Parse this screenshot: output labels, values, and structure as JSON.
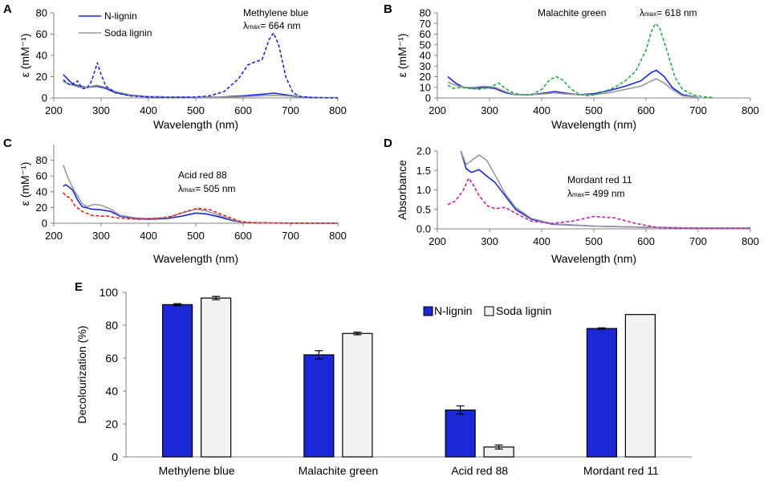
{
  "chart_data": [
    {
      "panel": "A",
      "type": "line",
      "xlabel": "Wavelength (nm)",
      "ylabel": "ε (mM⁻¹)",
      "xlim": [
        200,
        800
      ],
      "ylim": [
        0,
        80
      ],
      "xticks": [
        200,
        300,
        400,
        500,
        600,
        700,
        800
      ],
      "yticks": [
        0,
        20,
        40,
        60,
        80
      ],
      "annotation": "Methylene blue",
      "lambda_symbol": "λ",
      "lambda_sub": "max",
      "lambda_value": "= 664 nm",
      "legend": [
        "N-lignin",
        "Soda lignin"
      ],
      "series": [
        {
          "name": "N-lignin",
          "style": "solid",
          "color": "#1a28d6",
          "x": [
            220,
            240,
            255,
            270,
            290,
            310,
            330,
            360,
            400,
            450,
            500,
            550,
            600,
            640,
            665,
            690,
            720,
            760,
            800
          ],
          "y": [
            22,
            13,
            11,
            10,
            11,
            9,
            5,
            2.5,
            1.3,
            0.8,
            0.6,
            0.8,
            2,
            3.5,
            4.5,
            3,
            1,
            0.3,
            0.2
          ]
        },
        {
          "name": "Soda lignin",
          "style": "solid",
          "color": "#999999",
          "x": [
            220,
            240,
            255,
            270,
            290,
            310,
            330,
            360,
            400,
            450,
            500,
            550,
            600,
            640,
            665,
            690,
            720,
            760,
            800
          ],
          "y": [
            15,
            12,
            10,
            10,
            12,
            10,
            6,
            3,
            1.5,
            0.8,
            0.6,
            0.6,
            1.2,
            2,
            2.5,
            2,
            0.8,
            0.3,
            0.2
          ]
        },
        {
          "name": "Methylene blue",
          "style": "dashed",
          "color": "#1a28d6",
          "x": [
            220,
            235,
            250,
            260,
            270,
            280,
            292,
            300,
            310,
            330,
            360,
            400,
            450,
            500,
            530,
            560,
            590,
            610,
            625,
            640,
            655,
            664,
            675,
            690,
            705,
            720,
            740,
            770,
            800
          ],
          "y": [
            17,
            12,
            16,
            9,
            9,
            16,
            33,
            22,
            11,
            5,
            2,
            0.8,
            0.5,
            0.8,
            2,
            6,
            18,
            31,
            34,
            36,
            55,
            61,
            50,
            20,
            5,
            1.5,
            0.5,
            0.2,
            0.1
          ]
        }
      ]
    },
    {
      "panel": "B",
      "type": "line",
      "xlabel": "Wavelength (nm)",
      "ylabel": "ε (mM⁻¹)",
      "xlim": [
        200,
        800
      ],
      "ylim": [
        0,
        80
      ],
      "xticks": [
        200,
        300,
        400,
        500,
        600,
        700,
        800
      ],
      "yticks": [
        0,
        10,
        20,
        30,
        40,
        50,
        60,
        70,
        80
      ],
      "annotation": "Malachite green",
      "lambda_symbol": "λ",
      "lambda_sub": "max",
      "lambda_value": "= 618 nm",
      "series": [
        {
          "name": "N-lignin",
          "style": "solid",
          "color": "#1a28d6",
          "x": [
            220,
            235,
            250,
            270,
            290,
            310,
            330,
            350,
            380,
            410,
            425,
            440,
            470,
            500,
            530,
            560,
            590,
            610,
            620,
            635,
            650,
            670,
            700
          ],
          "y": [
            20,
            14,
            10,
            9,
            10,
            9,
            5,
            3,
            3,
            5,
            6,
            5,
            3,
            4,
            7,
            11,
            16,
            24,
            26,
            20,
            10,
            3,
            0.5
          ]
        },
        {
          "name": "Soda lignin",
          "style": "solid",
          "color": "#999999",
          "x": [
            220,
            235,
            250,
            270,
            290,
            310,
            330,
            350,
            380,
            410,
            425,
            440,
            470,
            500,
            530,
            560,
            590,
            610,
            620,
            635,
            650,
            670,
            700
          ],
          "y": [
            15,
            12,
            10,
            10,
            11,
            10,
            6,
            3,
            3,
            4,
            5,
            4,
            3,
            3,
            5,
            8,
            11,
            16,
            18,
            14,
            8,
            2,
            0.5
          ]
        },
        {
          "name": "Malachite green",
          "style": "dashed",
          "color": "#1fae4a",
          "x": [
            220,
            230,
            245,
            260,
            280,
            300,
            318,
            330,
            345,
            360,
            380,
            400,
            415,
            428,
            440,
            455,
            470,
            485,
            500,
            520,
            540,
            560,
            580,
            600,
            610,
            618,
            625,
            640,
            655,
            670,
            690,
            710,
            730
          ],
          "y": [
            12,
            9,
            10,
            9,
            8,
            10,
            14,
            9,
            5,
            3,
            3,
            8,
            17,
            20,
            17,
            9,
            4,
            2,
            3,
            6,
            10,
            16,
            25,
            45,
            62,
            70,
            67,
            45,
            20,
            8,
            3,
            1,
            0.5
          ]
        }
      ]
    },
    {
      "panel": "C",
      "type": "line",
      "xlabel": "Wavelength (nm)",
      "ylabel": "ε (mM⁻¹)",
      "xlim": [
        200,
        800
      ],
      "ylim": [
        0,
        100
      ],
      "xticks": [
        200,
        300,
        400,
        500,
        600,
        700,
        800
      ],
      "yticks": [
        0,
        20,
        40,
        60,
        80
      ],
      "annotation": "Acid red 88",
      "lambda_symbol": "λ",
      "lambda_sub": "max",
      "lambda_value": "= 505 nm",
      "series": [
        {
          "name": "N-lignin",
          "style": "solid",
          "color": "#1a28d6",
          "x": [
            220,
            225,
            230,
            240,
            250,
            260,
            280,
            300,
            320,
            340,
            370,
            400,
            440,
            470,
            500,
            520,
            550,
            580,
            600,
            640,
            700,
            800
          ],
          "y": [
            47,
            49,
            47,
            42,
            30,
            21,
            18,
            17,
            15,
            9,
            6,
            5,
            6,
            9,
            13,
            12,
            8,
            3,
            1,
            0.4,
            0.2,
            0.1
          ]
        },
        {
          "name": "Soda lignin",
          "style": "solid",
          "color": "#999999",
          "x": [
            220,
            230,
            240,
            250,
            260,
            270,
            285,
            300,
            320,
            340,
            370,
            400,
            440,
            470,
            500,
            520,
            550,
            580,
            600,
            640,
            700,
            800
          ],
          "y": [
            74,
            58,
            45,
            35,
            25,
            21,
            24,
            23,
            18,
            10,
            7,
            6,
            7,
            13,
            18,
            16,
            10,
            4,
            1,
            0.4,
            0.2,
            0.1
          ]
        },
        {
          "name": "Acid red 88",
          "style": "dashed",
          "color": "#e02020",
          "x": [
            220,
            225,
            235,
            245,
            260,
            280,
            300,
            315,
            330,
            350,
            380,
            420,
            450,
            480,
            505,
            530,
            560,
            590,
            610,
            650,
            700,
            800
          ],
          "y": [
            39,
            35,
            32,
            22,
            15,
            10,
            9,
            9,
            7,
            6,
            5,
            6,
            9,
            15,
            19,
            17,
            10,
            3,
            1,
            0.3,
            0.1,
            0.1
          ]
        }
      ]
    },
    {
      "panel": "D",
      "type": "line",
      "xlabel": "Wavelength (nm)",
      "ylabel": "Absorbance",
      "xlim": [
        200,
        800
      ],
      "ylim": [
        0,
        2.0
      ],
      "xticks": [
        200,
        300,
        400,
        500,
        600,
        700,
        800
      ],
      "yticks": [
        0.0,
        0.5,
        1.0,
        1.5,
        2.0
      ],
      "ytick_labels": [
        "0.0",
        "0.5",
        "1.0",
        "1.5",
        "2.0"
      ],
      "annotation": "Mordant red 11",
      "lambda_symbol": "λ",
      "lambda_sub": "max",
      "lambda_value": "= 499 nm",
      "series": [
        {
          "name": "N-lignin",
          "style": "solid",
          "color": "#1a28d6",
          "x": [
            245,
            255,
            265,
            280,
            295,
            310,
            330,
            350,
            380,
            420,
            500,
            600,
            700,
            800
          ],
          "y": [
            2.0,
            1.55,
            1.45,
            1.52,
            1.35,
            1.2,
            0.85,
            0.5,
            0.25,
            0.12,
            0.07,
            0.04,
            0.02,
            0.02
          ]
        },
        {
          "name": "Soda lignin",
          "style": "solid",
          "color": "#999999",
          "x": [
            245,
            255,
            265,
            280,
            295,
            310,
            330,
            350,
            380,
            420,
            500,
            600,
            700,
            800
          ],
          "y": [
            2.0,
            1.65,
            1.75,
            1.9,
            1.75,
            1.4,
            0.9,
            0.55,
            0.27,
            0.13,
            0.07,
            0.04,
            0.02,
            0.02
          ]
        },
        {
          "name": "Mordant red 11",
          "style": "dashed",
          "color": "#c020b0",
          "x": [
            220,
            235,
            250,
            260,
            268,
            280,
            295,
            310,
            330,
            350,
            380,
            420,
            460,
            500,
            540,
            580,
            620,
            660,
            700,
            760,
            800
          ],
          "y": [
            0.62,
            0.72,
            1.0,
            1.3,
            1.15,
            0.85,
            0.6,
            0.52,
            0.55,
            0.4,
            0.2,
            0.14,
            0.2,
            0.32,
            0.28,
            0.14,
            0.04,
            0.02,
            0.01,
            0.01,
            0.01
          ]
        }
      ]
    },
    {
      "panel": "E",
      "type": "bar",
      "ylabel": "Decolourization (%)",
      "ylim": [
        0,
        100
      ],
      "yticks": [
        0,
        20,
        40,
        60,
        80,
        100
      ],
      "categories": [
        "Methylene blue",
        "Malachite green",
        "Acid red 88",
        "Mordant red 11"
      ],
      "legend_placement": "top-right",
      "series": [
        {
          "name": "N-lignin",
          "color": "#1a28d6",
          "values": [
            92.5,
            62,
            28.5,
            78
          ],
          "errors": [
            0.6,
            2.5,
            2.5,
            0.4
          ]
        },
        {
          "name": "Soda lignin",
          "color": "#f2f2f2",
          "values": [
            96.5,
            75,
            6,
            86.5
          ],
          "errors": [
            1.0,
            0.8,
            1.2,
            0.0
          ]
        }
      ]
    }
  ]
}
